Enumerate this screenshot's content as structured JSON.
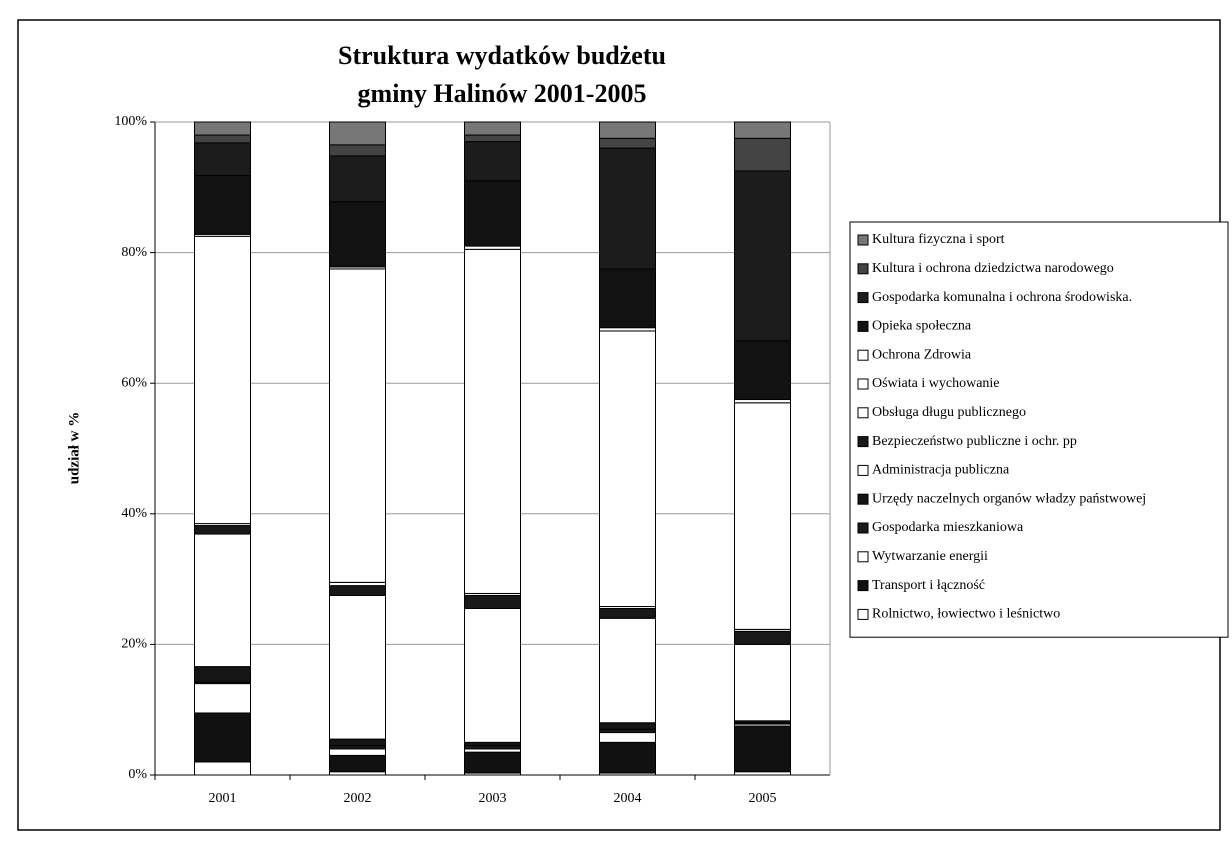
{
  "chart_data": {
    "type": "stacked_bar",
    "title": [
      "Struktura wydatków budżetu",
      "gminy Halinów 2001-2005"
    ],
    "y_label": "udział w %",
    "categories": [
      "2001",
      "2002",
      "2003",
      "2004",
      "2005"
    ],
    "ylim": [
      0,
      100
    ],
    "yticks": [
      {
        "value": 0,
        "label": "0%"
      },
      {
        "value": 20,
        "label": "20%"
      },
      {
        "value": 40,
        "label": "40%"
      },
      {
        "value": 60,
        "label": "60%"
      },
      {
        "value": 80,
        "label": "80%"
      },
      {
        "value": 100,
        "label": "100%"
      }
    ],
    "grid": true,
    "legend": "right",
    "series": [
      {
        "name": "Rolnictwo, łowiectwo i leśnictwo",
        "color": "#ffffff",
        "values": [
          2,
          0.5,
          0.3,
          0.3,
          0.5
        ]
      },
      {
        "name": "Transport i łączność",
        "color": "#111111",
        "values": [
          7.5,
          2.5,
          3.2,
          4.7,
          7
        ]
      },
      {
        "name": "Wytwarzanie energii",
        "color": "#ffffff",
        "values": [
          4.5,
          1,
          0.5,
          1.5,
          0.3
        ]
      },
      {
        "name": "Gospodarka mieszkaniowa",
        "color": "#1a1a1a",
        "values": [
          0.2,
          0.5,
          0.5,
          0.5,
          0.2
        ]
      },
      {
        "name": "Urzędy naczelnych organów władzy państwowej",
        "color": "#151515",
        "values": [
          2.4,
          1,
          0.5,
          1,
          0.3
        ]
      },
      {
        "name": "Administracja publiczna",
        "color": "#ffffff",
        "values": [
          20.3,
          22,
          20.5,
          16,
          11.7
        ]
      },
      {
        "name": "Bezpieczeństwo publiczne i ochr. pp",
        "color": "#181818",
        "values": [
          1.3,
          1.5,
          2,
          1.5,
          2
        ]
      },
      {
        "name": "Obsługa długu publicznego",
        "color": "#ffffff",
        "values": [
          0.3,
          0.5,
          0.3,
          0.3,
          0.3
        ]
      },
      {
        "name": "Oświata i wychowanie",
        "color": "#ffffff",
        "values": [
          44,
          48,
          52.7,
          42.2,
          34.7
        ]
      },
      {
        "name": "Ochrona Zdrowia",
        "color": "#ffffff",
        "values": [
          0.3,
          0.3,
          0.5,
          0.5,
          0.5
        ]
      },
      {
        "name": "Opieka społeczna",
        "color": "#121212",
        "values": [
          9,
          10,
          10,
          9,
          9
        ]
      },
      {
        "name": "Gospodarka  komunalna i ochrona środowiska.",
        "color": "#1c1c1c",
        "values": [
          5,
          7,
          6,
          18.5,
          26
        ]
      },
      {
        "name": "Kultura i ochrona dziedzictwa narodowego",
        "color": "#444444",
        "values": [
          1.2,
          1.7,
          1,
          1.5,
          5
        ]
      },
      {
        "name": "Kultura fizyczna i sport",
        "color": "#777777",
        "values": [
          2,
          3.5,
          2,
          2.5,
          2.5
        ]
      }
    ]
  }
}
